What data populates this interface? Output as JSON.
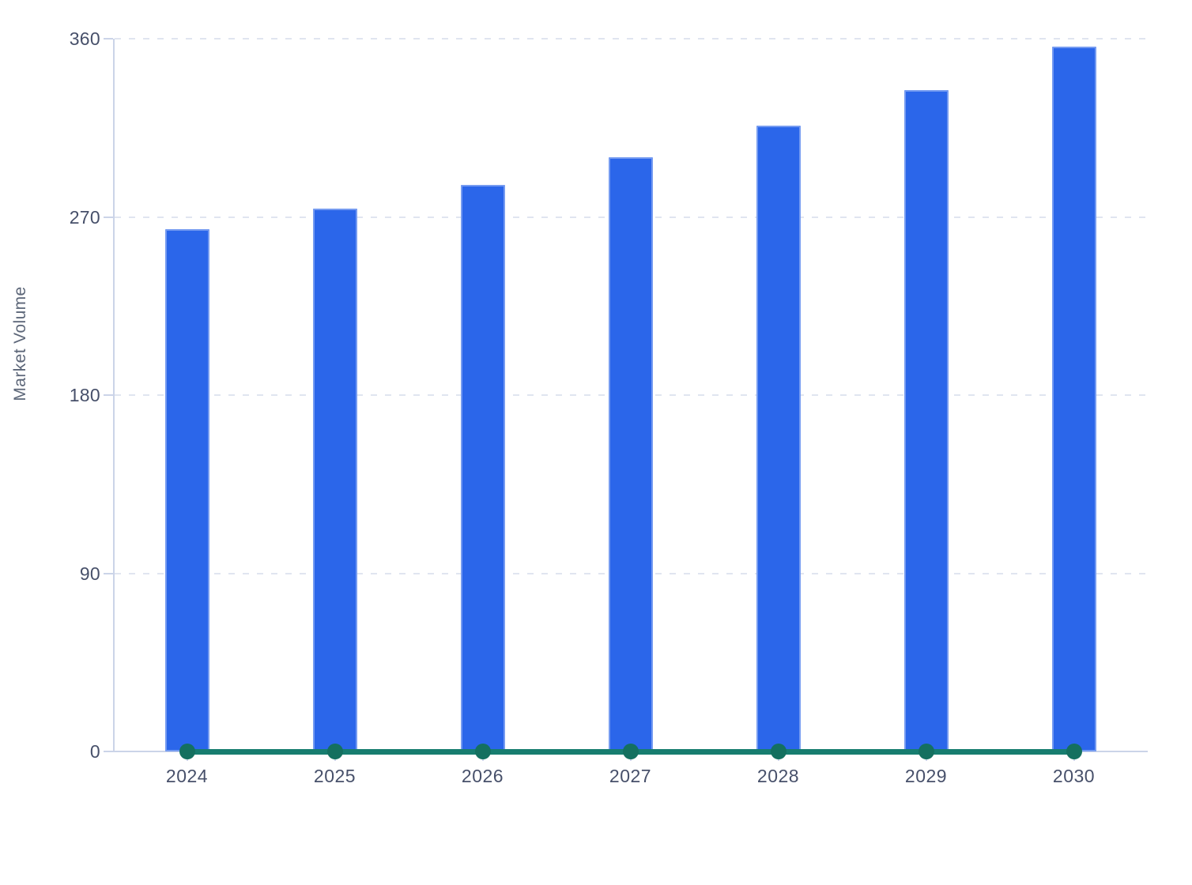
{
  "chart_data": {
    "type": "bar",
    "categories": [
      "2024",
      "2025",
      "2026",
      "2027",
      "2028",
      "2029",
      "2030"
    ],
    "series": [
      {
        "name": "market-volume-bars",
        "type": "bar",
        "values": [
          264,
          274,
          286,
          300,
          316,
          334,
          356
        ],
        "color": "#2B66EA"
      },
      {
        "name": "zero-line",
        "type": "line",
        "values": [
          0,
          0,
          0,
          0,
          0,
          0,
          0
        ],
        "color": "#177D6F",
        "marker_color": "#14705F"
      }
    ],
    "title": "",
    "xlabel": "",
    "ylabel": "Market Volume",
    "ylim": [
      0,
      360
    ],
    "yticks": [
      0,
      90,
      180,
      270,
      360
    ],
    "grid": "horizontal-dashed",
    "legend": "none"
  },
  "colors": {
    "background": "#FFFFFF",
    "bar_fill": "#2B66EA",
    "line": "#177D6F",
    "line_marker": "#14705F",
    "axis_line": "#CBD4E8",
    "gridline": "#E0E5F0",
    "tick_label": "#47506A",
    "axis_title": "#5C6678"
  }
}
